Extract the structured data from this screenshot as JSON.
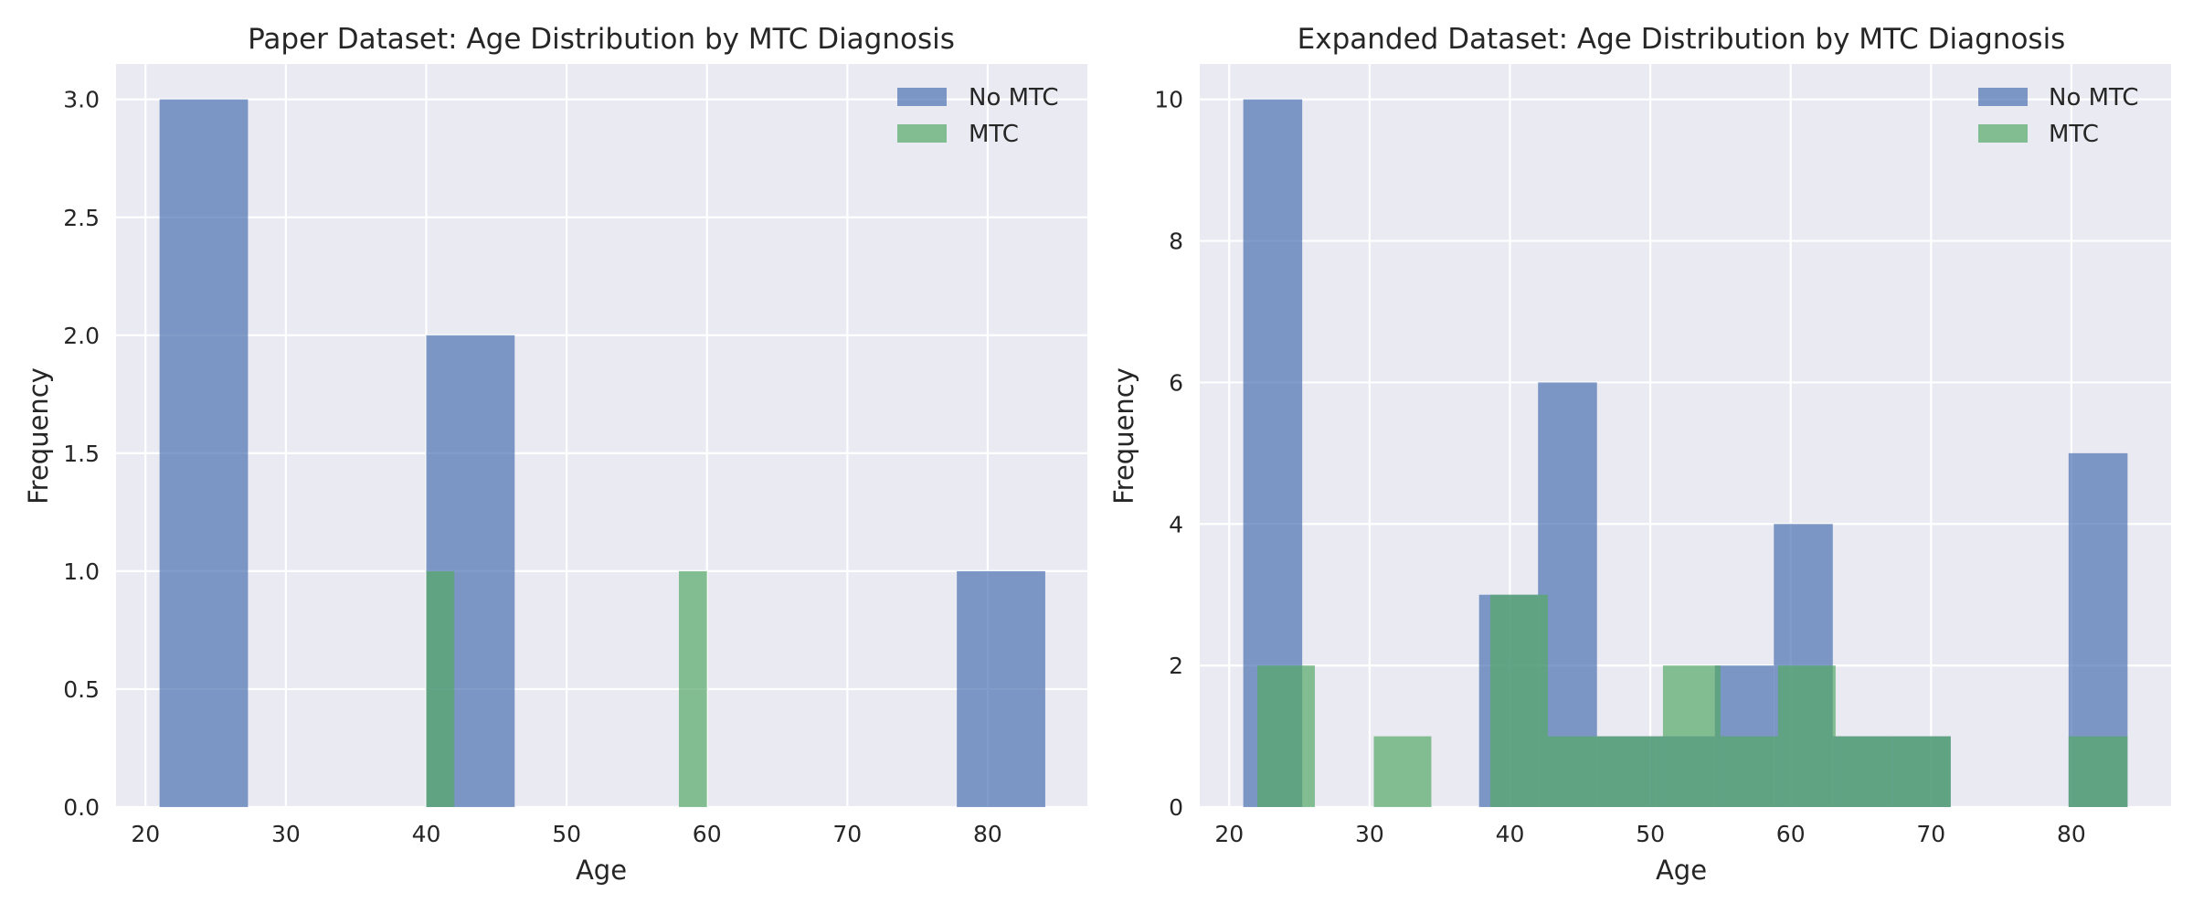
{
  "chart_data": [
    {
      "type": "histogram",
      "title": "Paper Dataset: Age Distribution by MTC Diagnosis",
      "xlabel": "Age",
      "ylabel": "Frequency",
      "xlim": [
        17.9,
        87.1
      ],
      "ylim": [
        0,
        3.15
      ],
      "xticks": [
        20,
        30,
        40,
        50,
        60,
        70,
        80
      ],
      "yticks": [
        0.0,
        0.5,
        1.0,
        1.5,
        2.0,
        2.5,
        3.0
      ],
      "ytick_labels": [
        "0.0",
        "0.5",
        "1.0",
        "1.5",
        "2.0",
        "2.5",
        "3.0"
      ],
      "grid": true,
      "legend_position": "top-right",
      "series": [
        {
          "name": "No MTC",
          "color": "#4C72B0",
          "bins": [
            {
              "x0": 21.0,
              "x1": 27.3,
              "count": 3
            },
            {
              "x0": 40.0,
              "x1": 46.3,
              "count": 2
            },
            {
              "x0": 77.8,
              "x1": 84.1,
              "count": 1
            }
          ]
        },
        {
          "name": "MTC",
          "color": "#55A868",
          "bins": [
            {
              "x0": 40.0,
              "x1": 42.0,
              "count": 1
            },
            {
              "x0": 58.0,
              "x1": 60.0,
              "count": 1
            }
          ]
        }
      ]
    },
    {
      "type": "histogram",
      "title": "Expanded Dataset: Age Distribution by MTC Diagnosis",
      "xlabel": "Age",
      "ylabel": "Frequency",
      "xlim": [
        17.9,
        87.1
      ],
      "ylim": [
        0,
        10.5
      ],
      "xticks": [
        20,
        30,
        40,
        50,
        60,
        70,
        80
      ],
      "yticks": [
        0,
        2,
        4,
        6,
        8,
        10
      ],
      "ytick_labels": [
        "0",
        "2",
        "4",
        "6",
        "8",
        "10"
      ],
      "grid": true,
      "legend_position": "top-right",
      "series": [
        {
          "name": "No MTC",
          "color": "#4C72B0",
          "bins": [
            {
              "x0": 21.0,
              "x1": 25.2,
              "count": 10
            },
            {
              "x0": 37.8,
              "x1": 42.0,
              "count": 3
            },
            {
              "x0": 42.0,
              "x1": 46.2,
              "count": 6
            },
            {
              "x0": 46.2,
              "x1": 50.4,
              "count": 1
            },
            {
              "x0": 50.4,
              "x1": 54.6,
              "count": 1
            },
            {
              "x0": 54.6,
              "x1": 58.8,
              "count": 2
            },
            {
              "x0": 58.8,
              "x1": 63.0,
              "count": 4
            },
            {
              "x0": 63.0,
              "x1": 67.2,
              "count": 1
            },
            {
              "x0": 67.2,
              "x1": 71.4,
              "count": 1
            },
            {
              "x0": 79.8,
              "x1": 84.0,
              "count": 5
            }
          ]
        },
        {
          "name": "MTC",
          "color": "#55A868",
          "bins": [
            {
              "x0": 22.0,
              "x1": 26.1,
              "count": 2
            },
            {
              "x0": 30.3,
              "x1": 34.4,
              "count": 1
            },
            {
              "x0": 38.6,
              "x1": 42.7,
              "count": 3
            },
            {
              "x0": 42.7,
              "x1": 46.8,
              "count": 1
            },
            {
              "x0": 46.8,
              "x1": 50.9,
              "count": 1
            },
            {
              "x0": 50.9,
              "x1": 55.0,
              "count": 2
            },
            {
              "x0": 55.0,
              "x1": 59.1,
              "count": 1
            },
            {
              "x0": 59.1,
              "x1": 63.2,
              "count": 2
            },
            {
              "x0": 63.2,
              "x1": 67.3,
              "count": 1
            },
            {
              "x0": 67.3,
              "x1": 71.4,
              "count": 1
            },
            {
              "x0": 79.8,
              "x1": 84.0,
              "count": 1
            }
          ]
        }
      ]
    }
  ]
}
